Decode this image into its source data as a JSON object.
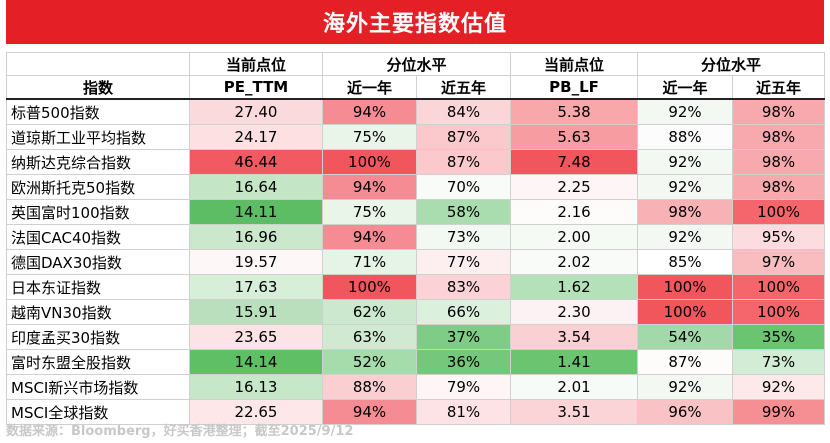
{
  "title": "海外主要指数估值",
  "headers": {
    "index": "指数",
    "pe_current": "当前点位",
    "pe_metric": "PE_TTM",
    "pe_percentile": "分位水平",
    "pb_current": "当前点位",
    "pb_metric": "PB_LF",
    "pb_percentile": "分位水平",
    "one_year": "近一年",
    "five_year": "近五年"
  },
  "rows": [
    {
      "name": "标普500指数",
      "pe": "27.40",
      "pe_1y": "94%",
      "pe_5y": "84%",
      "pb": "5.38",
      "pb_1y": "92%",
      "pb_5y": "98%"
    },
    {
      "name": "道琼斯工业平均指数",
      "pe": "24.17",
      "pe_1y": "75%",
      "pe_5y": "87%",
      "pb": "5.63",
      "pb_1y": "88%",
      "pb_5y": "98%"
    },
    {
      "name": "纳斯达克综合指数",
      "pe": "46.44",
      "pe_1y": "100%",
      "pe_5y": "87%",
      "pb": "7.48",
      "pb_1y": "92%",
      "pb_5y": "98%"
    },
    {
      "name": "欧洲斯托克50指数",
      "pe": "16.64",
      "pe_1y": "94%",
      "pe_5y": "70%",
      "pb": "2.25",
      "pb_1y": "92%",
      "pb_5y": "98%"
    },
    {
      "name": "英国富时100指数",
      "pe": "14.11",
      "pe_1y": "75%",
      "pe_5y": "58%",
      "pb": "2.16",
      "pb_1y": "98%",
      "pb_5y": "100%"
    },
    {
      "name": "法国CAC40指数",
      "pe": "16.96",
      "pe_1y": "94%",
      "pe_5y": "73%",
      "pb": "2.00",
      "pb_1y": "92%",
      "pb_5y": "95%"
    },
    {
      "name": "德国DAX30指数",
      "pe": "19.57",
      "pe_1y": "71%",
      "pe_5y": "77%",
      "pb": "2.02",
      "pb_1y": "85%",
      "pb_5y": "97%"
    },
    {
      "name": "日本东证指数",
      "pe": "17.63",
      "pe_1y": "100%",
      "pe_5y": "83%",
      "pb": "1.62",
      "pb_1y": "100%",
      "pb_5y": "100%"
    },
    {
      "name": "越南VN30指数",
      "pe": "15.91",
      "pe_1y": "62%",
      "pe_5y": "66%",
      "pb": "2.30",
      "pb_1y": "100%",
      "pb_5y": "100%"
    },
    {
      "name": "印度孟买30指数",
      "pe": "23.65",
      "pe_1y": "63%",
      "pe_5y": "37%",
      "pb": "3.54",
      "pb_1y": "54%",
      "pb_5y": "35%"
    },
    {
      "name": "富时东盟全股指数",
      "pe": "14.14",
      "pe_1y": "52%",
      "pe_5y": "36%",
      "pb": "1.41",
      "pb_1y": "87%",
      "pb_5y": "73%"
    },
    {
      "name": "MSCI新兴市场指数",
      "pe": "16.13",
      "pe_1y": "88%",
      "pe_5y": "79%",
      "pb": "2.01",
      "pb_1y": "92%",
      "pb_5y": "92%"
    },
    {
      "name": "MSCI全球指数",
      "pe": "22.65",
      "pe_1y": "94%",
      "pe_5y": "81%",
      "pb": "3.51",
      "pb_1y": "96%",
      "pb_5y": "99%"
    }
  ],
  "cell_colors": [
    {
      "pe": "#fbdadd",
      "pe_1y": "#f68c93",
      "pe_5y": "#fbd6d9",
      "pb": "#f8a7ab",
      "pb_1y": "#f3f8f3",
      "pb_5y": "#f8a9ad"
    },
    {
      "pe": "#fce0e2",
      "pe_1y": "#eaf5ea",
      "pe_5y": "#fbc9cc",
      "pb": "#f79ca1",
      "pb_1y": "#fbfcfb",
      "pb_5y": "#f8a9ad"
    },
    {
      "pe": "#f25a61",
      "pe_1y": "#f2565d",
      "pe_5y": "#fbc9cc",
      "pb": "#f2565d",
      "pb_1y": "#f3f8f3",
      "pb_5y": "#f8a9ad"
    },
    {
      "pe": "#c4e6c6",
      "pe_1y": "#f68c93",
      "pe_5y": "#f8fbf8",
      "pb": "#fdf5f6",
      "pb_1y": "#f3f8f3",
      "pb_5y": "#f8a9ad"
    },
    {
      "pe": "#5cbd64",
      "pe_1y": "#eaf5ea",
      "pe_5y": "#a9dcae",
      "pb": "#fefbfb",
      "pb_1y": "#f8b1b5",
      "pb_5y": "#f4666c"
    },
    {
      "pe": "#cbe8cd",
      "pe_1y": "#f68c93",
      "pe_5y": "#f2f8f2",
      "pb": "#f5faf5",
      "pb_1y": "#f3f8f3",
      "pb_5y": "#fcdcdf"
    },
    {
      "pe": "#fef7f8",
      "pe_1y": "#e6f3e7",
      "pe_5y": "#fdeff0",
      "pb": "#f8fbf8",
      "pb_1y": "#ffffff",
      "pb_5y": "#f9bcbf"
    },
    {
      "pe": "#d7eed9",
      "pe_1y": "#f2565d",
      "pe_5y": "#fbd3d6",
      "pb": "#b5e1b9",
      "pb_1y": "#f2565d",
      "pb_5y": "#f4666c"
    },
    {
      "pe": "#badfbc",
      "pe_1y": "#cce9cf",
      "pe_5y": "#dcf0de",
      "pb": "#fdf2f3",
      "pb_1y": "#f2565d",
      "pb_5y": "#f4666c"
    },
    {
      "pe": "#fce3e5",
      "pe_1y": "#d0ead2",
      "pe_5y": "#7ecc85",
      "pb": "#fbd0d3",
      "pb_1y": "#a3d9a8",
      "pb_5y": "#6ac470"
    },
    {
      "pe": "#5ebf65",
      "pe_1y": "#a6dbab",
      "pe_5y": "#74c77b",
      "pb": "#6ac470",
      "pb_1y": "#fefbfb",
      "pb_5y": "#d3ecd5"
    },
    {
      "pe": "#c7e7c9",
      "pe_1y": "#fbcfd2",
      "pe_5y": "#fef6f6",
      "pb": "#f7fbf7",
      "pb_1y": "#f3f8f3",
      "pb_5y": "#fde9ea"
    },
    {
      "pe": "#fde7e9",
      "pe_1y": "#f68c93",
      "pe_5y": "#fde3e5",
      "pb": "#fbd4d7",
      "pb_1y": "#f9c2c5",
      "pb_5y": "#f68f94"
    }
  ],
  "source": "数据来源：Bloomberg，好买香港整理；截至2025/9/12"
}
